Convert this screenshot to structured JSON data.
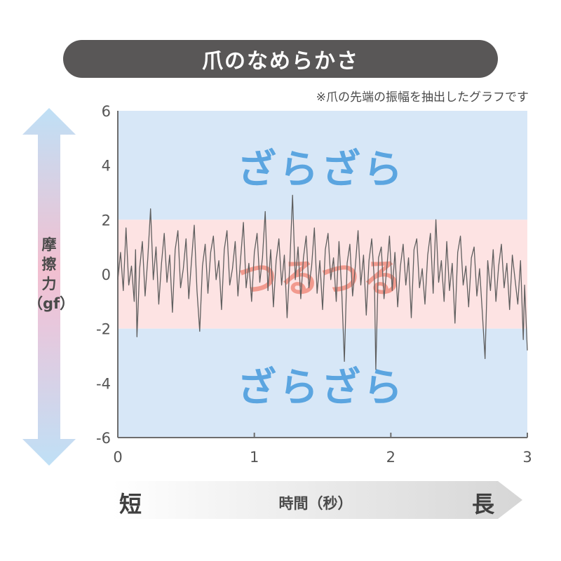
{
  "title": "爪のなめらかさ",
  "note": "※爪の先端の振幅を抽出したグラフです",
  "y_axis": {
    "chars": [
      "摩",
      "擦",
      "力"
    ],
    "unit": "（gf）"
  },
  "x_axis": {
    "short": "短",
    "long": "長",
    "label": "時間（秒）"
  },
  "colors": {
    "rough_band": "#d7e7f7",
    "smooth_band": "#fde3e3",
    "rough_text": "#5ba5e0",
    "smooth_text": "#f29a8e",
    "signal": "#5f5f5f",
    "title_bg": "#595757"
  },
  "chart_data": {
    "type": "line",
    "xlim": [
      0,
      3
    ],
    "ylim": [
      -6,
      6
    ],
    "x_ticks": [
      "0",
      "1",
      "2",
      "3"
    ],
    "y_ticks": [
      "6",
      "4",
      "2",
      "0",
      "-2",
      "-4",
      "-6"
    ],
    "bands": [
      {
        "label": "ざらざら",
        "from": 2,
        "to": 6
      },
      {
        "label": "つるつる",
        "from": -2,
        "to": 2
      },
      {
        "label": "ざらざら",
        "from": -6,
        "to": -2
      }
    ],
    "series": [
      {
        "points": [
          [
            0.0,
            -0.2
          ],
          [
            0.02,
            0.8
          ],
          [
            0.04,
            -0.6
          ],
          [
            0.06,
            1.7
          ],
          [
            0.08,
            -0.4
          ],
          [
            0.1,
            0.3
          ],
          [
            0.12,
            -1.0
          ],
          [
            0.13,
            0.9
          ],
          [
            0.14,
            -2.3
          ],
          [
            0.16,
            0.2
          ],
          [
            0.18,
            1.2
          ],
          [
            0.2,
            -0.8
          ],
          [
            0.22,
            0.6
          ],
          [
            0.24,
            2.4
          ],
          [
            0.26,
            -0.2
          ],
          [
            0.28,
            1.0
          ],
          [
            0.3,
            -1.1
          ],
          [
            0.32,
            0.4
          ],
          [
            0.34,
            1.5
          ],
          [
            0.36,
            -0.3
          ],
          [
            0.38,
            0.7
          ],
          [
            0.4,
            -1.4
          ],
          [
            0.42,
            0.9
          ],
          [
            0.44,
            1.6
          ],
          [
            0.46,
            -0.5
          ],
          [
            0.48,
            0.2
          ],
          [
            0.5,
            1.3
          ],
          [
            0.52,
            -0.9
          ],
          [
            0.54,
            0.5
          ],
          [
            0.56,
            1.8
          ],
          [
            0.58,
            -0.6
          ],
          [
            0.6,
            -2.1
          ],
          [
            0.62,
            0.3
          ],
          [
            0.64,
            1.1
          ],
          [
            0.66,
            -0.7
          ],
          [
            0.68,
            0.8
          ],
          [
            0.7,
            1.4
          ],
          [
            0.72,
            -0.2
          ],
          [
            0.74,
            0.5
          ],
          [
            0.76,
            -1.3
          ],
          [
            0.78,
            0.9
          ],
          [
            0.8,
            1.6
          ],
          [
            0.82,
            -0.4
          ],
          [
            0.84,
            0.2
          ],
          [
            0.86,
            1.2
          ],
          [
            0.88,
            -0.8
          ],
          [
            0.9,
            0.6
          ],
          [
            0.92,
            1.9
          ],
          [
            0.94,
            -0.5
          ],
          [
            0.96,
            0.4
          ],
          [
            0.98,
            -1.0
          ],
          [
            1.0,
            0.8
          ],
          [
            1.02,
            1.5
          ],
          [
            1.04,
            -0.3
          ],
          [
            1.06,
            0.6
          ],
          [
            1.08,
            2.3
          ],
          [
            1.1,
            -0.6
          ],
          [
            1.12,
            0.9
          ],
          [
            1.14,
            -1.2
          ],
          [
            1.16,
            0.5
          ],
          [
            1.18,
            1.3
          ],
          [
            1.2,
            -0.4
          ],
          [
            1.22,
            0.7
          ],
          [
            1.24,
            -1.6
          ],
          [
            1.26,
            0.4
          ],
          [
            1.28,
            2.9
          ],
          [
            1.3,
            -0.2
          ],
          [
            1.32,
            1.0
          ],
          [
            1.34,
            -0.9
          ],
          [
            1.36,
            0.6
          ],
          [
            1.38,
            1.4
          ],
          [
            1.4,
            -0.5
          ],
          [
            1.42,
            0.3
          ],
          [
            1.44,
            1.7
          ],
          [
            1.46,
            -0.7
          ],
          [
            1.48,
            0.5
          ],
          [
            1.5,
            -1.3
          ],
          [
            1.52,
            0.9
          ],
          [
            1.54,
            1.5
          ],
          [
            1.56,
            -0.2
          ],
          [
            1.58,
            0.6
          ],
          [
            1.6,
            -1.0
          ],
          [
            1.62,
            1.2
          ],
          [
            1.64,
            -0.6
          ],
          [
            1.66,
            -3.2
          ],
          [
            1.68,
            0.4
          ],
          [
            1.7,
            1.1
          ],
          [
            1.72,
            -0.8
          ],
          [
            1.74,
            0.3
          ],
          [
            1.76,
            1.6
          ],
          [
            1.78,
            -0.4
          ],
          [
            1.8,
            0.7
          ],
          [
            1.82,
            -1.5
          ],
          [
            1.84,
            0.5
          ],
          [
            1.86,
            1.3
          ],
          [
            1.88,
            -0.3
          ],
          [
            1.89,
            -3.5
          ],
          [
            1.91,
            0.6
          ],
          [
            1.93,
            1.0
          ],
          [
            1.95,
            -0.9
          ],
          [
            1.97,
            0.2
          ],
          [
            1.99,
            1.4
          ],
          [
            2.01,
            -0.6
          ],
          [
            2.03,
            0.8
          ],
          [
            2.05,
            -1.2
          ],
          [
            2.07,
            0.3
          ],
          [
            2.09,
            1.1
          ],
          [
            2.11,
            -0.4
          ],
          [
            2.13,
            0.6
          ],
          [
            2.15,
            -1.6
          ],
          [
            2.17,
            0.9
          ],
          [
            2.19,
            1.3
          ],
          [
            2.21,
            -0.5
          ],
          [
            2.23,
            0.2
          ],
          [
            2.25,
            -1.1
          ],
          [
            2.27,
            0.7
          ],
          [
            2.29,
            1.5
          ],
          [
            2.31,
            -0.7
          ],
          [
            2.33,
            2.0
          ],
          [
            2.35,
            -0.3
          ],
          [
            2.37,
            0.5
          ],
          [
            2.39,
            -1.0
          ],
          [
            2.41,
            1.2
          ],
          [
            2.43,
            -0.6
          ],
          [
            2.45,
            0.4
          ],
          [
            2.47,
            -1.8
          ],
          [
            2.49,
            0.8
          ],
          [
            2.51,
            1.4
          ],
          [
            2.53,
            -0.4
          ],
          [
            2.55,
            0.3
          ],
          [
            2.57,
            -1.2
          ],
          [
            2.59,
            0.6
          ],
          [
            2.61,
            1.0
          ],
          [
            2.63,
            -0.8
          ],
          [
            2.65,
            0.2
          ],
          [
            2.67,
            -1.4
          ],
          [
            2.69,
            -3.1
          ],
          [
            2.71,
            0.5
          ],
          [
            2.73,
            -0.6
          ],
          [
            2.75,
            0.9
          ],
          [
            2.77,
            -1.0
          ],
          [
            2.79,
            0.3
          ],
          [
            2.81,
            1.1
          ],
          [
            2.83,
            -0.5
          ],
          [
            2.85,
            0.4
          ],
          [
            2.87,
            -1.3
          ],
          [
            2.89,
            0.7
          ],
          [
            2.91,
            -0.2
          ],
          [
            2.93,
            -1.1
          ],
          [
            2.95,
            0.5
          ],
          [
            2.97,
            -2.4
          ],
          [
            2.98,
            -0.4
          ],
          [
            3.0,
            -2.8
          ]
        ]
      }
    ]
  }
}
